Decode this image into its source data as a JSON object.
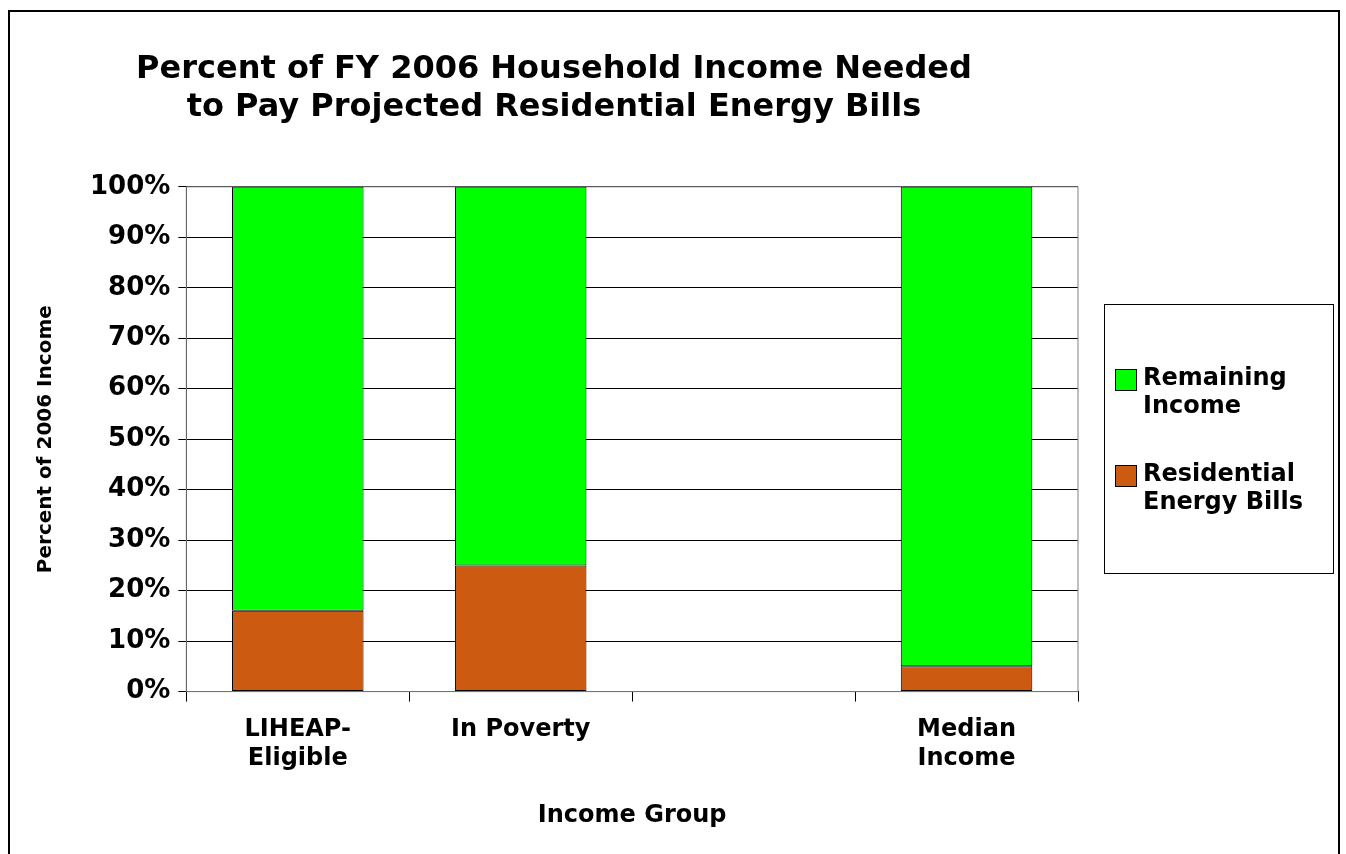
{
  "chart_data": {
    "type": "bar",
    "title": "Percent of FY 2006 Household Income Needed\nto Pay Projected Residential Energy Bills",
    "xlabel": "Income Group",
    "ylabel": "Percent of 2006 Income",
    "categories": [
      "LIHEAP-Eligible",
      "In Poverty",
      null,
      "Median Income"
    ],
    "stacked": true,
    "series": [
      {
        "name": "Residential Energy Bills",
        "color": "#cc5a10",
        "values": [
          16,
          25,
          null,
          5
        ]
      },
      {
        "name": "Remaining Income",
        "color": "#00ff00",
        "values": [
          84,
          75,
          null,
          95
        ]
      }
    ],
    "ylim": [
      0,
      100
    ],
    "yticks": [
      {
        "value": 0,
        "label": "0%"
      },
      {
        "value": 10,
        "label": "10%"
      },
      {
        "value": 20,
        "label": "20%"
      },
      {
        "value": 30,
        "label": "30%"
      },
      {
        "value": 40,
        "label": "40%"
      },
      {
        "value": 50,
        "label": "50%"
      },
      {
        "value": 60,
        "label": "60%"
      },
      {
        "value": 70,
        "label": "70%"
      },
      {
        "value": 80,
        "label": "80%"
      },
      {
        "value": 90,
        "label": "90%"
      },
      {
        "value": 100,
        "label": "100%"
      }
    ],
    "grid": "y",
    "legend": "right"
  }
}
